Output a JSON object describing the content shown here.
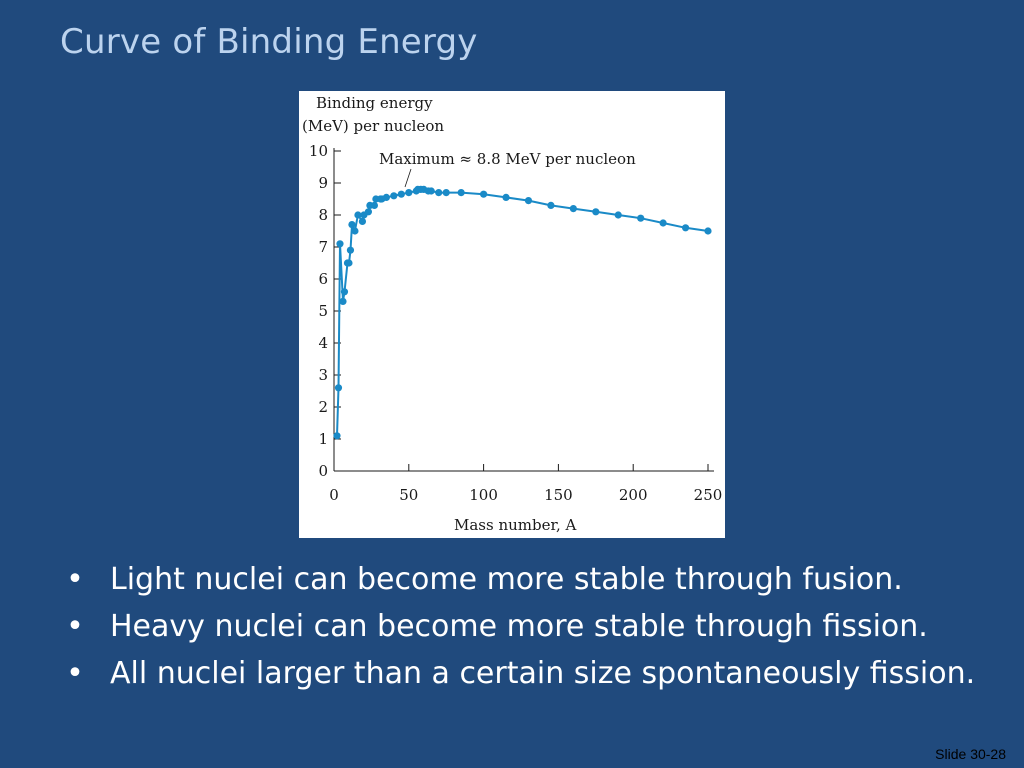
{
  "slide": {
    "title": "Curve of Binding Energy",
    "slide_number": "Slide 30-28"
  },
  "bullets": [
    "Light nuclei can become more stable through fusion.",
    "Heavy nuclei can become more stable through fission.",
    "All nuclei larger than a certain size spontaneously fission."
  ],
  "colors": {
    "background": "#204a7d",
    "title": "#bcd3ee",
    "series": "#1a8ac7"
  },
  "chart_data": {
    "type": "line",
    "ylabel_line1": "Binding energy",
    "ylabel_line2": "(MeV) per nucleon",
    "xlabel": "Mass number, A",
    "annotation": "Maximum ≈ 8.8 MeV per nucleon",
    "xlim": [
      0,
      250
    ],
    "ylim": [
      0,
      10
    ],
    "x_ticks": [
      "0",
      "50",
      "100",
      "150",
      "200",
      "250"
    ],
    "y_ticks": [
      "0",
      "1",
      "2",
      "3",
      "4",
      "5",
      "6",
      "7",
      "8",
      "9",
      "10"
    ],
    "grid": false,
    "series": [
      {
        "x": [
          2,
          3,
          4,
          6,
          7,
          9,
          10,
          11,
          12,
          14,
          16,
          19,
          20,
          23,
          24,
          27,
          28,
          31,
          32,
          35,
          40,
          45,
          50,
          55,
          56,
          58,
          60,
          63,
          65,
          70,
          75,
          85,
          100,
          115,
          130,
          145,
          160,
          175,
          190,
          205,
          220,
          235,
          250
        ],
        "y": [
          1.1,
          2.6,
          7.1,
          5.3,
          5.6,
          6.5,
          6.5,
          6.9,
          7.7,
          7.5,
          8.0,
          7.8,
          8.0,
          8.1,
          8.3,
          8.3,
          8.5,
          8.5,
          8.5,
          8.55,
          8.6,
          8.65,
          8.7,
          8.75,
          8.8,
          8.8,
          8.8,
          8.75,
          8.75,
          8.7,
          8.7,
          8.7,
          8.65,
          8.55,
          8.45,
          8.3,
          8.2,
          8.1,
          8.0,
          7.9,
          7.75,
          7.6,
          7.5
        ]
      }
    ]
  }
}
